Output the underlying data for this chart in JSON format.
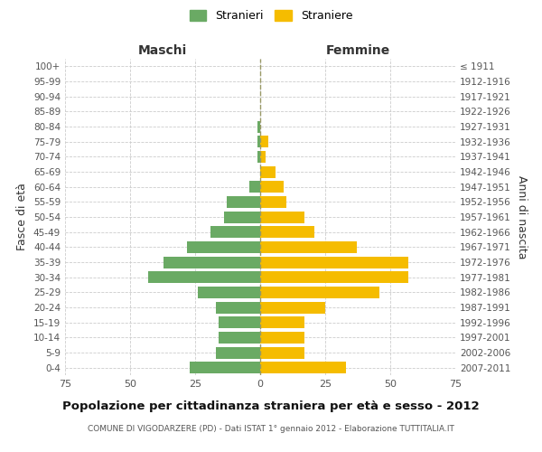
{
  "age_groups": [
    "0-4",
    "5-9",
    "10-14",
    "15-19",
    "20-24",
    "25-29",
    "30-34",
    "35-39",
    "40-44",
    "45-49",
    "50-54",
    "55-59",
    "60-64",
    "65-69",
    "70-74",
    "75-79",
    "80-84",
    "85-89",
    "90-94",
    "95-99",
    "100+"
  ],
  "birth_years": [
    "2007-2011",
    "2002-2006",
    "1997-2001",
    "1992-1996",
    "1987-1991",
    "1982-1986",
    "1977-1981",
    "1972-1976",
    "1967-1971",
    "1962-1966",
    "1957-1961",
    "1952-1956",
    "1947-1951",
    "1942-1946",
    "1937-1941",
    "1932-1936",
    "1927-1931",
    "1922-1926",
    "1917-1921",
    "1912-1916",
    "≤ 1911"
  ],
  "maschi": [
    27,
    17,
    16,
    16,
    17,
    24,
    43,
    37,
    28,
    19,
    14,
    13,
    4,
    0,
    1,
    1,
    1,
    0,
    0,
    0,
    0
  ],
  "femmine": [
    33,
    17,
    17,
    17,
    25,
    46,
    57,
    57,
    37,
    21,
    17,
    10,
    9,
    6,
    2,
    3,
    0,
    0,
    0,
    0,
    0
  ],
  "color_maschi": "#6aaa64",
  "color_femmine_bar": "#f5bc00",
  "title": "Popolazione per cittadinanza straniera per età e sesso - 2012",
  "subtitle": "COMUNE DI VIGODARZERE (PD) - Dati ISTAT 1° gennaio 2012 - Elaborazione TUTTITALIA.IT",
  "ylabel_left": "Fasce di età",
  "ylabel_right": "Anni di nascita",
  "xlabel_left": "Maschi",
  "xlabel_right": "Femmine",
  "legend_maschi": "Stranieri",
  "legend_femmine": "Straniere",
  "xlim": 75,
  "background_color": "#ffffff",
  "grid_color": "#cccccc",
  "centerline_color": "#aaaaaa"
}
